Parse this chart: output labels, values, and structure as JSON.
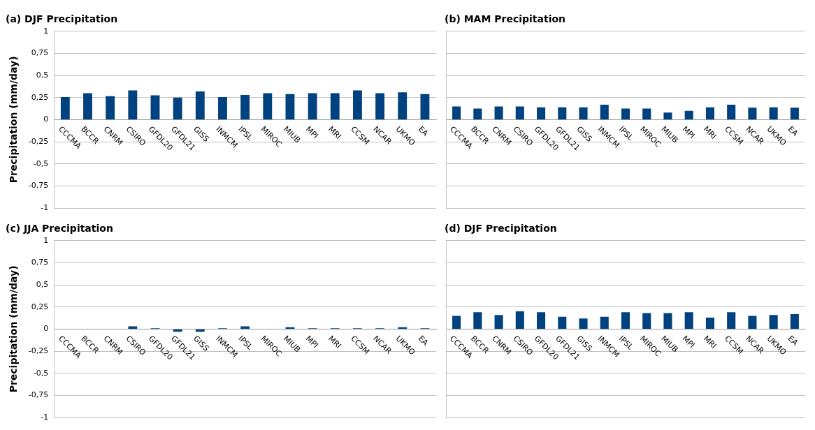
{
  "chart_data": [
    {
      "type": "bar",
      "title": "(a) DJF Precipitation",
      "ylabel": "Precipitation (mm/day)",
      "categories": [
        "CCCMA",
        "BCCR",
        "CNRM",
        "CSIRO",
        "GFDL20",
        "GFDL21",
        "GISS",
        "INMCM",
        "IPSL",
        "MIROC",
        "MIUB",
        "MPI",
        "MRI",
        "CCSM",
        "NCAR",
        "UKMO",
        "EA"
      ],
      "values": [
        0.255,
        0.3,
        0.265,
        0.33,
        0.275,
        0.25,
        0.32,
        0.255,
        0.28,
        0.3,
        0.29,
        0.3,
        0.3,
        0.33,
        0.3,
        0.31,
        0.29
      ],
      "color": "#00427f",
      "ylim": [
        -1,
        1
      ],
      "yticks": [
        -1,
        {
          "value": -0.75,
          "label": "-0,75"
        },
        {
          "value": -0.5,
          "label": "-0,5"
        },
        {
          "value": -0.25,
          "label": "-0,25"
        },
        0,
        {
          "value": 0.25,
          "label": "0,25"
        },
        {
          "value": 0.5,
          "label": "0,5"
        },
        {
          "value": 0.75,
          "label": "0,75"
        },
        1
      ],
      "grid": "y"
    },
    {
      "type": "bar",
      "title": "(b) MAM Precipitation",
      "categories": [
        "CCCMA",
        "BCCR",
        "CNRM",
        "CSIRO",
        "GFDL20",
        "GFDL21",
        "GISS",
        "INMCM",
        "IPSL",
        "MIROC",
        "MIUB",
        "MPI",
        "MRI",
        "CCSM",
        "NCAR",
        "UKMO",
        "EA"
      ],
      "values": [
        0.15,
        0.125,
        0.15,
        0.15,
        0.14,
        0.14,
        0.14,
        0.17,
        0.125,
        0.125,
        0.08,
        0.1,
        0.14,
        0.17,
        0.135,
        0.14,
        0.135
      ],
      "color": "#00427f",
      "ylim": [
        -1,
        1
      ],
      "yticks": [
        -1,
        -0.75,
        -0.5,
        -0.25,
        0,
        0.25,
        0.5,
        0.75,
        1
      ],
      "grid": "y",
      "tick_labels": "x"
    },
    {
      "type": "bar",
      "title": "(c) JJA Precipitation",
      "ylabel": "Precipitation (mm/day)",
      "categories": [
        "CCCMA",
        "BCCR",
        "CNRM",
        "CSIRO",
        "GFDL20",
        "GFDL21",
        "GISS",
        "INMCM",
        "IPSL",
        "MIROC",
        "MIUB",
        "MPI",
        "MRI",
        "CCSM",
        "NCAR",
        "UKMO",
        "EA"
      ],
      "values": [
        0,
        0,
        0,
        0.03,
        0.01,
        -0.03,
        -0.03,
        0.01,
        0.03,
        0,
        0.02,
        0.01,
        0.01,
        0.01,
        0.01,
        0.02,
        0.01
      ],
      "color": "#00427f",
      "ylim": [
        -1,
        1
      ],
      "yticks": [
        -1,
        {
          "value": -0.75,
          "label": "-0,75"
        },
        {
          "value": -0.5,
          "label": "-0,5"
        },
        {
          "value": -0.25,
          "label": "-0,25"
        },
        0,
        {
          "value": 0.25,
          "label": "0,25"
        },
        {
          "value": 0.5,
          "label": "0,5"
        },
        {
          "value": 0.75,
          "label": "0,75"
        },
        1
      ],
      "grid": "y"
    },
    {
      "type": "bar",
      "title": "(d) DJF Precipitation",
      "categories": [
        "CCCMA",
        "BCCR",
        "CNRM",
        "CSIRO",
        "GFDL20",
        "GFDL21",
        "GISS",
        "INMCM",
        "IPSL",
        "MIROC",
        "MIUB",
        "MPI",
        "MRI",
        "CCSM",
        "NCAR",
        "UKMO",
        "EA"
      ],
      "values": [
        0.15,
        0.19,
        0.16,
        0.2,
        0.19,
        0.14,
        0.12,
        0.14,
        0.19,
        0.18,
        0.18,
        0.19,
        0.13,
        0.19,
        0.15,
        0.16,
        0.17
      ],
      "color": "#00427f",
      "ylim": [
        -1,
        1
      ],
      "yticks": [
        -1,
        -0.75,
        -0.5,
        -0.25,
        0,
        0.25,
        0.5,
        0.75,
        1
      ],
      "grid": "y",
      "tick_labels": "x"
    }
  ]
}
